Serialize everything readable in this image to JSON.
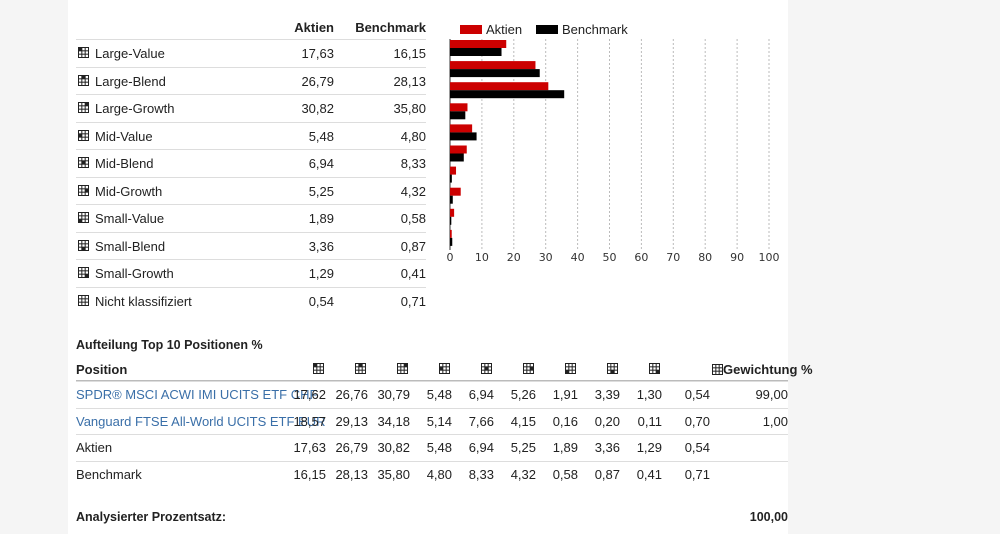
{
  "style_table": {
    "headers": {
      "aktien": "Aktien",
      "benchmark": "Benchmark"
    },
    "rows": [
      {
        "label": "Large-Value",
        "aktien": "17,63",
        "benchmark": "16,15",
        "cell": 0
      },
      {
        "label": "Large-Blend",
        "aktien": "26,79",
        "benchmark": "28,13",
        "cell": 1
      },
      {
        "label": "Large-Growth",
        "aktien": "30,82",
        "benchmark": "35,80",
        "cell": 2
      },
      {
        "label": "Mid-Value",
        "aktien": "5,48",
        "benchmark": "4,80",
        "cell": 3
      },
      {
        "label": "Mid-Blend",
        "aktien": "6,94",
        "benchmark": "8,33",
        "cell": 4
      },
      {
        "label": "Mid-Growth",
        "aktien": "5,25",
        "benchmark": "4,32",
        "cell": 5
      },
      {
        "label": "Small-Value",
        "aktien": "1,89",
        "benchmark": "0,58",
        "cell": 6
      },
      {
        "label": "Small-Blend",
        "aktien": "3,36",
        "benchmark": "0,87",
        "cell": 7
      },
      {
        "label": "Small-Growth",
        "aktien": "1,29",
        "benchmark": "0,41",
        "cell": 8
      },
      {
        "label": "Nicht klassifiziert",
        "aktien": "0,54",
        "benchmark": "0,71",
        "cell": -1
      }
    ]
  },
  "chart_data": {
    "type": "bar",
    "orientation": "horizontal",
    "categories": [
      "Large-Value",
      "Large-Blend",
      "Large-Growth",
      "Mid-Value",
      "Mid-Blend",
      "Mid-Growth",
      "Small-Value",
      "Small-Blend",
      "Small-Growth",
      "Nicht klassifiziert"
    ],
    "series": [
      {
        "name": "Aktien",
        "color": "#cc0000",
        "values": [
          17.63,
          26.79,
          30.82,
          5.48,
          6.94,
          5.25,
          1.89,
          3.36,
          1.29,
          0.54
        ]
      },
      {
        "name": "Benchmark",
        "color": "#000000",
        "values": [
          16.15,
          28.13,
          35.8,
          4.8,
          8.33,
          4.32,
          0.58,
          0.87,
          0.41,
          0.71
        ]
      }
    ],
    "xlim": [
      0,
      100
    ],
    "xticks": [
      "0",
      "10",
      "20",
      "30",
      "40",
      "50",
      "60",
      "70",
      "80",
      "90",
      "100"
    ],
    "grid": "vertical dotted",
    "legend": "top-left"
  },
  "top10": {
    "title": "Aufteilung Top 10 Positionen %",
    "header_position": "Position",
    "header_gewichtung": "Gewichtung %",
    "rows": [
      {
        "name": "SPDR® MSCI ACWI IMI UCITS ETF CHF",
        "link": true,
        "values": [
          "17,62",
          "26,76",
          "30,79",
          "5,48",
          "6,94",
          "5,26",
          "1,91",
          "3,39",
          "1,30",
          "0,54"
        ],
        "gewichtung": "99,00"
      },
      {
        "name": "Vanguard FTSE All-World UCITS ETF EUR",
        "link": true,
        "values": [
          "18,57",
          "29,13",
          "34,18",
          "5,14",
          "7,66",
          "4,15",
          "0,16",
          "0,20",
          "0,11",
          "0,70"
        ],
        "gewichtung": "1,00"
      },
      {
        "name": "Aktien",
        "link": false,
        "values": [
          "17,63",
          "26,79",
          "30,82",
          "5,48",
          "6,94",
          "5,25",
          "1,89",
          "3,36",
          "1,29",
          "0,54"
        ],
        "gewichtung": ""
      },
      {
        "name": "Benchmark",
        "link": false,
        "values": [
          "16,15",
          "28,13",
          "35,80",
          "4,80",
          "8,33",
          "4,32",
          "0,58",
          "0,87",
          "0,41",
          "0,71"
        ],
        "gewichtung": ""
      }
    ]
  },
  "analyzed": {
    "label": "Analysierter Prozentsatz:",
    "value": "100,00"
  }
}
